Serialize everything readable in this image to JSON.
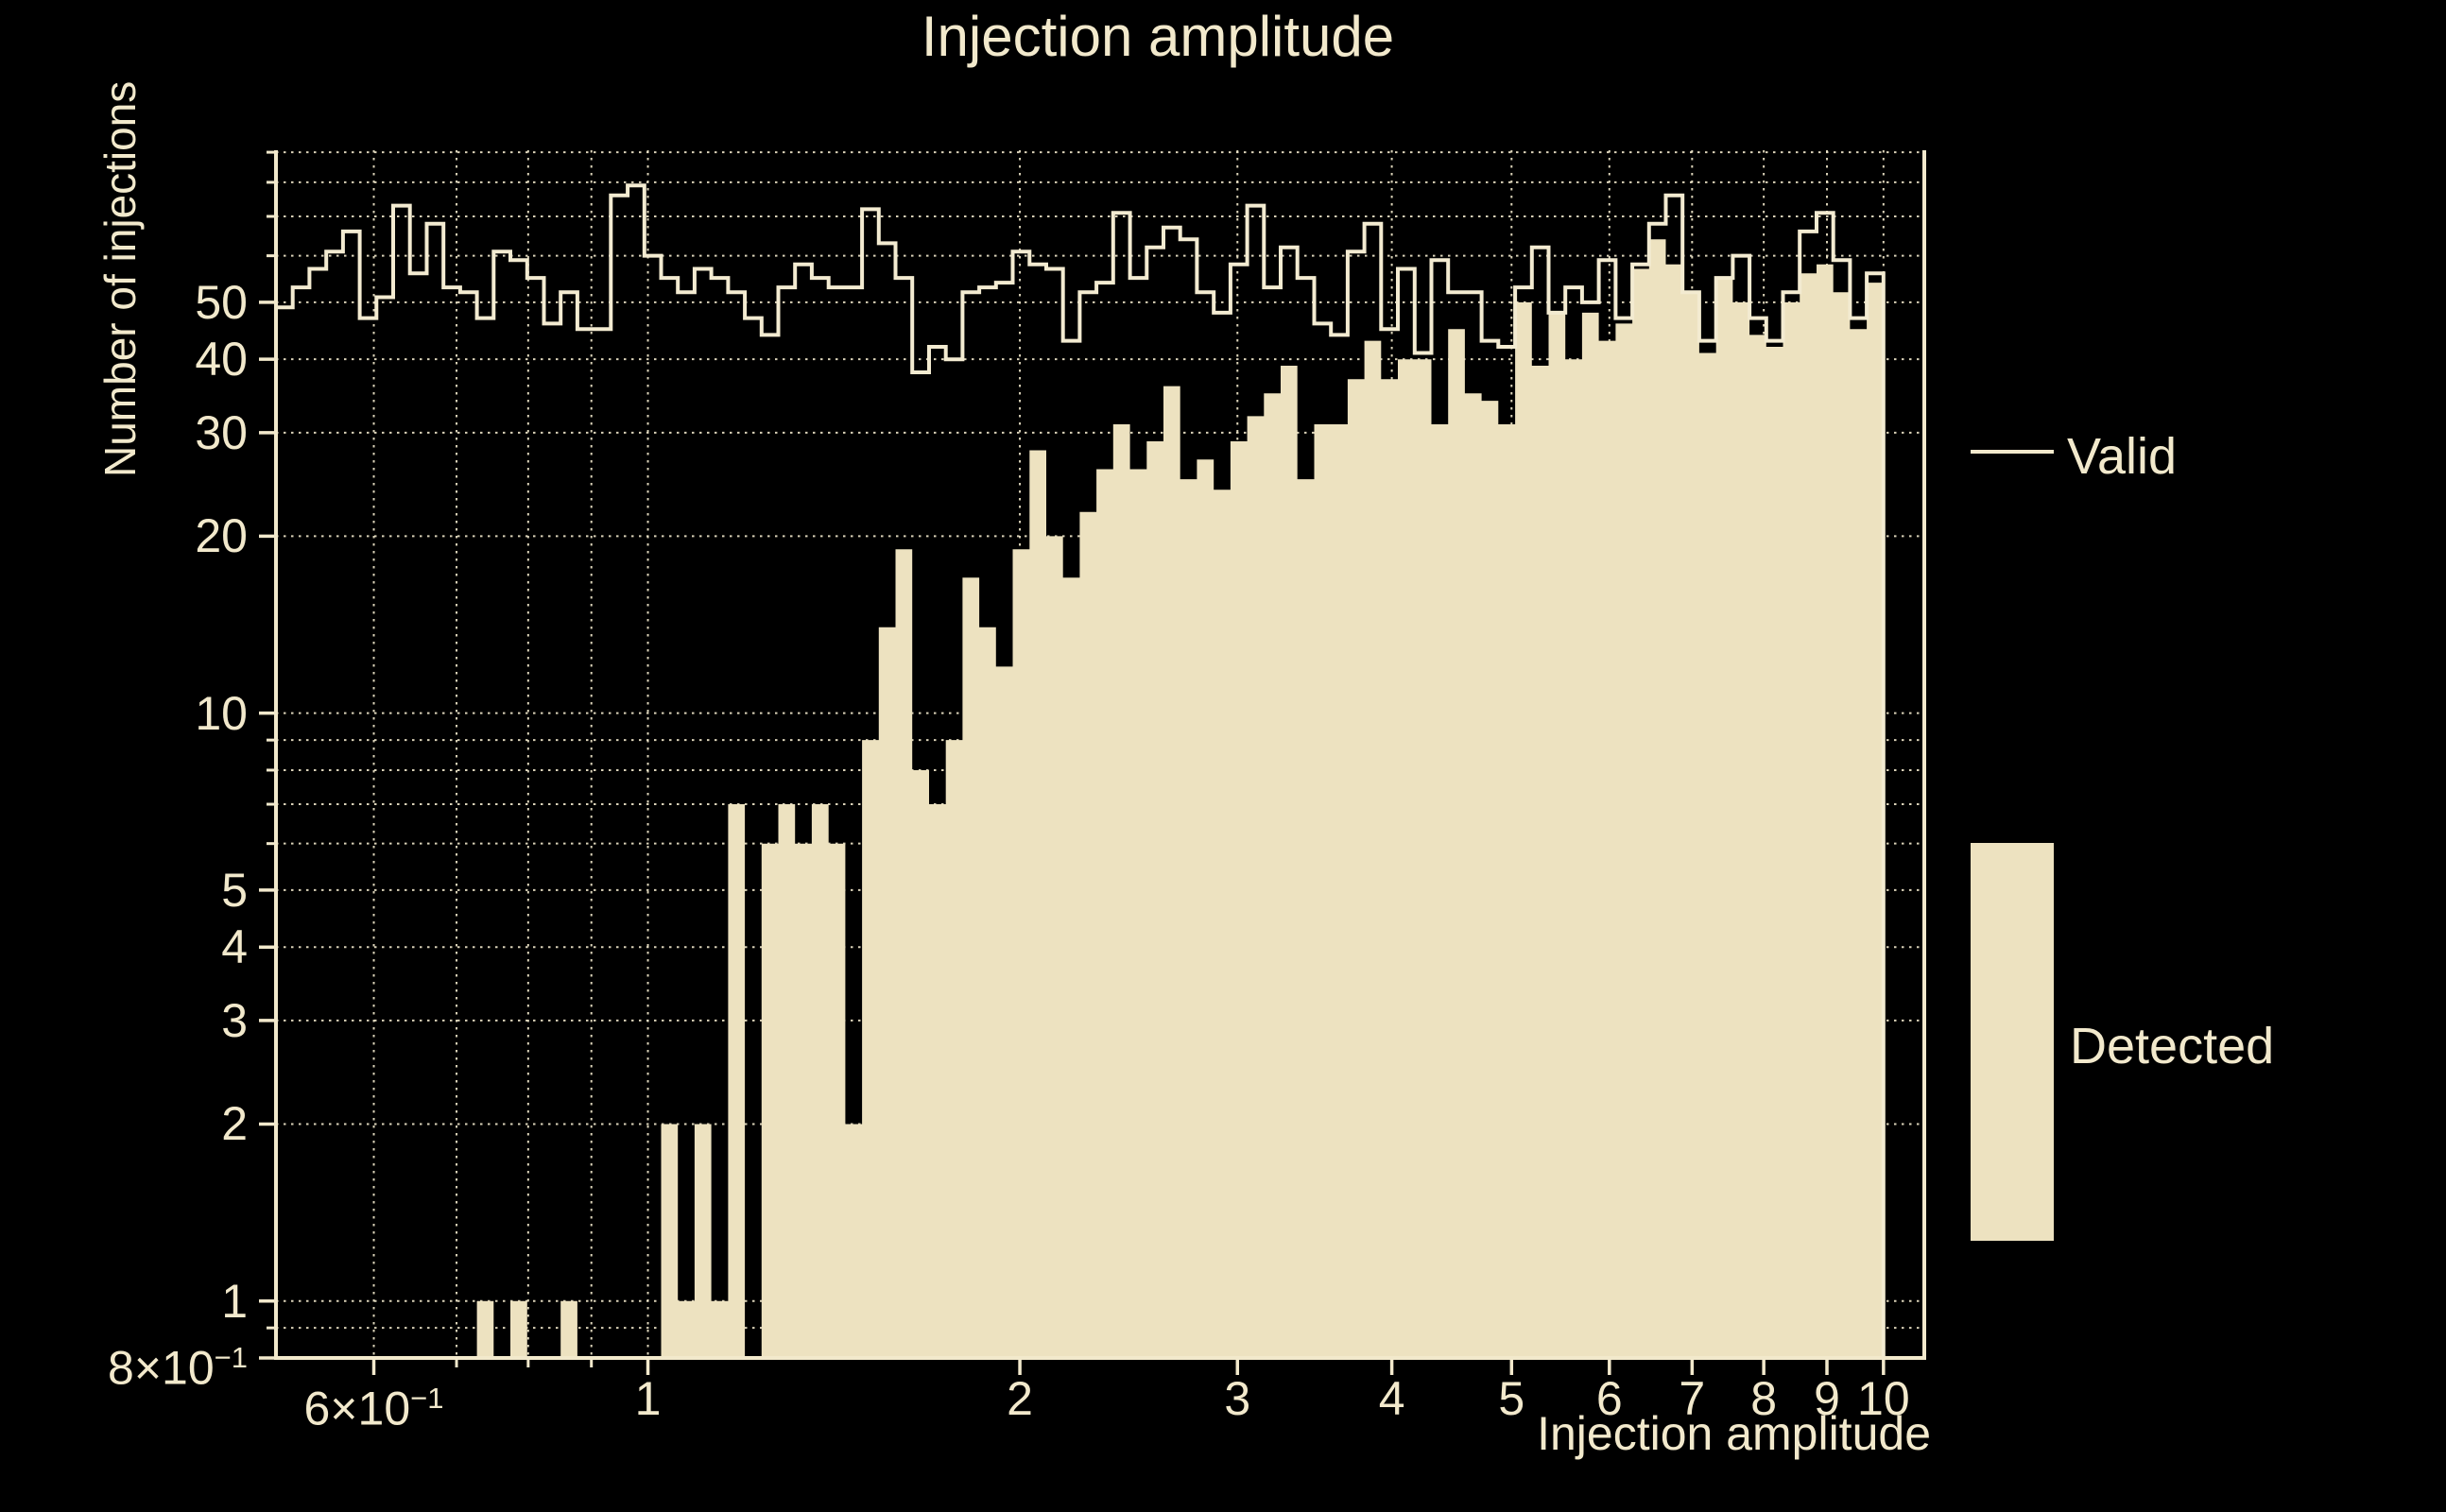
{
  "title": "Injection amplitude",
  "legend": {
    "valid": "Valid",
    "detected": "Detected"
  },
  "colors": {
    "background": "#000000",
    "foreground": "#F2E9CC",
    "line": "#F3EBD1",
    "fill": "#EDE2C0",
    "grid": "#F2E9CC"
  },
  "chart_data": {
    "type": "histogram",
    "title": "Injection amplitude",
    "xlabel": "Injection amplitude",
    "ylabel": "Number of injections",
    "xscale": "log",
    "yscale": "log",
    "xlim": [
      0.5,
      10.79
    ],
    "ylim": [
      0.8,
      90.7
    ],
    "grid": "dotted, at 6,7,8,9x10^-1 and 1-10 on x; at 9x10^-1, 1-9, 10-90 on y",
    "legend_position": "right, outside axes",
    "bins": {
      "min": 0.5,
      "max": 10,
      "count": 96,
      "spacing": "log"
    },
    "x_ticks": [
      {
        "value": 0.6,
        "base": "6×10",
        "sup": "−1"
      },
      {
        "value": 1,
        "base": "1",
        "sup": ""
      },
      {
        "value": 2,
        "base": "2",
        "sup": ""
      },
      {
        "value": 3,
        "base": "3",
        "sup": ""
      },
      {
        "value": 4,
        "base": "4",
        "sup": ""
      },
      {
        "value": 5,
        "base": "5",
        "sup": ""
      },
      {
        "value": 6,
        "base": "6",
        "sup": ""
      },
      {
        "value": 7,
        "base": "7",
        "sup": ""
      },
      {
        "value": 8,
        "base": "8",
        "sup": ""
      },
      {
        "value": 9,
        "base": "9",
        "sup": ""
      },
      {
        "value": 10,
        "base": "10",
        "sup": ""
      }
    ],
    "y_ticks": [
      {
        "value": 0.8,
        "base": "8×10",
        "sup": "−1"
      },
      {
        "value": 1,
        "base": "1",
        "sup": ""
      },
      {
        "value": 2,
        "base": "2",
        "sup": ""
      },
      {
        "value": 3,
        "base": "3",
        "sup": ""
      },
      {
        "value": 4,
        "base": "4",
        "sup": ""
      },
      {
        "value": 5,
        "base": "5",
        "sup": ""
      },
      {
        "value": 10,
        "base": "10",
        "sup": ""
      },
      {
        "value": 20,
        "base": "20",
        "sup": ""
      },
      {
        "value": 30,
        "base": "30",
        "sup": ""
      },
      {
        "value": 40,
        "base": "40",
        "sup": ""
      },
      {
        "value": 50,
        "base": "50",
        "sup": ""
      }
    ],
    "x_minor_gridlines": [
      0.6,
      0.7,
      0.8,
      0.9,
      1,
      2,
      3,
      4,
      5,
      6,
      7,
      8,
      9,
      10
    ],
    "y_minor_gridlines": [
      0.9,
      1,
      2,
      3,
      4,
      5,
      6,
      7,
      8,
      9,
      10,
      20,
      30,
      40,
      50,
      60,
      70,
      80,
      90
    ],
    "series": [
      {
        "name": "Valid",
        "style": "step-outline",
        "values": [
          49,
          53,
          57,
          61,
          66,
          47,
          51,
          73,
          56,
          68,
          53,
          52,
          47,
          61,
          59,
          55,
          46,
          52,
          45,
          45,
          76,
          79,
          60,
          55,
          52,
          57,
          55,
          52,
          47,
          44,
          53,
          58,
          55,
          53,
          53,
          72,
          63,
          55,
          38,
          42,
          40,
          52,
          53,
          54,
          61,
          58,
          57,
          43,
          52,
          54,
          71,
          55,
          62,
          67,
          64,
          52,
          48,
          58,
          73,
          53,
          62,
          55,
          46,
          44,
          61,
          68,
          45,
          57,
          41,
          59,
          52,
          52,
          43,
          42,
          53,
          62,
          48,
          53,
          50,
          59,
          47,
          58,
          68,
          76,
          52,
          43,
          55,
          60,
          47,
          43,
          52,
          66,
          71,
          59,
          47,
          56
        ]
      },
      {
        "name": "Detected",
        "style": "filled",
        "values": [
          0,
          0,
          0,
          0,
          0,
          0,
          0,
          0,
          0,
          0,
          0,
          0,
          1,
          0,
          1,
          0,
          0,
          1,
          0,
          0,
          0,
          0,
          0,
          2,
          1,
          2,
          1,
          7,
          0,
          6,
          7,
          6,
          7,
          6,
          2,
          9,
          14,
          19,
          8,
          7,
          9,
          17,
          14,
          12,
          19,
          28,
          20,
          17,
          22,
          26,
          31,
          26,
          29,
          36,
          25,
          27,
          24,
          29,
          32,
          35,
          39,
          25,
          31,
          31,
          37,
          43,
          37,
          40,
          40,
          31,
          45,
          35,
          34,
          31,
          50,
          39,
          48,
          40,
          48,
          43,
          46,
          57,
          64,
          58,
          52,
          41,
          55,
          50,
          44,
          42,
          50,
          56,
          58,
          52,
          45,
          54
        ]
      }
    ]
  }
}
